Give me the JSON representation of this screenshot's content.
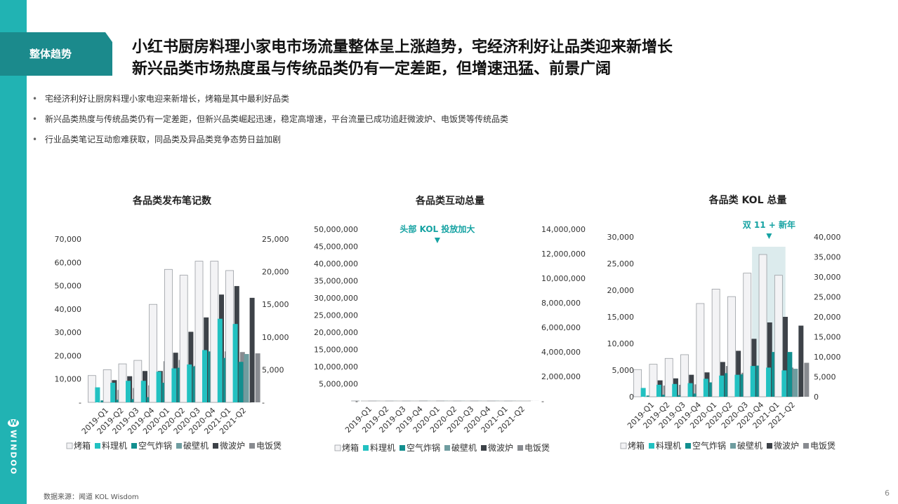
{
  "section_tag": "整体趋势",
  "headline": [
    "小红书厨房料理小家电市场流量整体呈上涨趋势，宅经济利好让品类迎来新增长",
    "新兴品类市场热度虽与传统品类仍有一定差距，但增速迅猛、前景广阔"
  ],
  "bullets": [
    "宅经济利好让厨房料理小家电迎来新增长，烤箱是其中最利好品类",
    "新兴品类热度与传统品类仍有一定差距，但新兴品类崛起迅速，稳定高增速，平台流量已成功追赶微波炉、电饭煲等传统品类",
    "行业品类笔记互动愈难获取，同品类及异品类竞争态势日益加剧"
  ],
  "brand": "WINDOO",
  "source": "数据来源：闻道 KOL Wisdom",
  "page_number": "6",
  "colors": {
    "primary": "#21b3b3",
    "dark": "#1b8a8c",
    "annotation": "#16a3a3"
  },
  "legend_colors": [
    "#f3f3f5",
    "#22c1c1",
    "#128f8f",
    "#6f9da0",
    "#3d4248",
    "#888b90"
  ],
  "chart_data": [
    {
      "type": "bar",
      "title": "各品类发布笔记数",
      "categories": [
        "2019-Q1",
        "2019-Q2",
        "2019-Q3",
        "2019-Q4",
        "2020-Q1",
        "2020-Q2",
        "2020-Q3",
        "2020-Q4",
        "2021-Q1",
        "2021-Q2"
      ],
      "ylim": [
        0,
        70000
      ],
      "y_ticks": [
        "-",
        "10,000",
        "20,000",
        "30,000",
        "40,000",
        "50,000",
        "60,000",
        "70,000"
      ],
      "y2lim": [
        0,
        25000
      ],
      "y2_ticks": [
        "-",
        "5,000",
        "10,000",
        "15,000",
        "20,000",
        "25,000"
      ],
      "series": [
        {
          "name": "烤箱",
          "axis": "left",
          "values": [
            11500,
            14000,
            16500,
            18000,
            42000,
            57000,
            54500,
            60500,
            60500,
            56500
          ]
        },
        {
          "name": "料理机",
          "axis": "right",
          "values": [
            2300,
            3000,
            3300,
            3300,
            4700,
            5200,
            5800,
            8000,
            12800,
            12000
          ]
        },
        {
          "name": "空气炸锅",
          "axis": "right",
          "values": [
            300,
            400,
            500,
            800,
            3000,
            5300,
            5500,
            7800,
            6800,
            6200
          ]
        },
        {
          "name": "破壁机",
          "axis": "right",
          "values": [
            900,
            1200,
            1700,
            2000,
            3400,
            5200,
            5700,
            7900,
            7100,
            7400
          ]
        },
        {
          "name": "微波炉",
          "axis": "right",
          "values": [
            3400,
            4000,
            4800,
            4800,
            7600,
            10800,
            13000,
            16500,
            17800,
            16000
          ]
        },
        {
          "name": "电饭煲",
          "axis": "right",
          "values": [
            1900,
            2200,
            2600,
            6300,
            6500,
            5600,
            6000,
            7800,
            7700,
            7500
          ]
        }
      ]
    },
    {
      "type": "bar",
      "title": "各品类互动总量",
      "annotation": "头部 KOL 投放加大",
      "categories": [
        "2019-Q1",
        "2019-Q2",
        "2019-Q3",
        "2019-Q4",
        "2020-Q1",
        "2020-Q2",
        "2020-Q3",
        "2020-Q4",
        "2021-Q1",
        "2021-Q2"
      ],
      "ylim": [
        0,
        50000000
      ],
      "y_ticks": [
        "-",
        "5,000,000",
        "10,000,000",
        "15,000,000",
        "20,000,000",
        "25,000,000",
        "30,000,000",
        "35,000,000",
        "40,000,000",
        "45,000,000",
        "50,000,000"
      ],
      "y2lim": [
        0,
        14000000
      ],
      "y2_ticks": [
        "-",
        "2,000,000",
        "4,000,000",
        "6,000,000",
        "8,000,000",
        "10,000,000",
        "12,000,000",
        "14,000,000"
      ],
      "series": [
        {
          "name": "烤箱",
          "axis": "left",
          "values": [
            15200,
            16400,
            16400,
            19500,
            43200,
            34100,
            25400,
            27400,
            25500,
            18700
          ]
        },
        {
          "name": "料理机",
          "axis": "right",
          "values": [
            1650,
            2050,
            1900,
            1300,
            3000,
            3050,
            3250,
            3000,
            2900,
            2300
          ]
        },
        {
          "name": "空气炸锅",
          "axis": "right",
          "values": [
            150,
            200,
            150,
            1450,
            2000,
            1700,
            1650,
            1600,
            1900,
            2200
          ]
        },
        {
          "name": "破壁机",
          "axis": "right",
          "values": [
            1700,
            2150,
            1850,
            1800,
            3150,
            3600,
            3700,
            2850,
            3250,
            3300
          ]
        },
        {
          "name": "微波炉",
          "axis": "right",
          "values": [
            2100,
            2200,
            2150,
            2900,
            4550,
            4350,
            4150,
            4900,
            4250,
            3900
          ]
        },
        {
          "name": "电饭煲",
          "axis": "right",
          "values": [
            1950,
            2350,
            4050,
            3050,
            7200,
            2300,
            3300,
            3000,
            2300,
            3200
          ]
        }
      ]
    },
    {
      "type": "bar",
      "title": "各品类 KOL 总量",
      "annotation": "双 11 + 新年",
      "categories": [
        "2019-Q1",
        "2019-Q2",
        "2019-Q3",
        "2019-Q4",
        "2020-Q1",
        "2020-Q2",
        "2020-Q3",
        "2020-Q4",
        "2021-Q1",
        "2021-Q2"
      ],
      "ylim": [
        0,
        30000
      ],
      "y_ticks": [
        "0",
        "5,000",
        "10,000",
        "15,000",
        "20,000",
        "25,000",
        "30,000"
      ],
      "y2lim": [
        0,
        40000
      ],
      "y2_ticks": [
        "0",
        "5,000",
        "10,000",
        "15,000",
        "20,000",
        "25,000",
        "30,000",
        "35,000",
        "40,000"
      ],
      "highlight_categories": [
        "2020-Q4",
        "2021-Q1"
      ],
      "series": [
        {
          "name": "烤箱",
          "axis": "left",
          "values": [
            5100,
            6100,
            7200,
            7900,
            17500,
            20200,
            18800,
            23200,
            26700,
            22800
          ]
        },
        {
          "name": "料理机",
          "axis": "right",
          "values": [
            2200,
            3000,
            3200,
            3400,
            4500,
            5300,
            5500,
            7700,
            7300,
            6600
          ]
        },
        {
          "name": "空气炸锅",
          "axis": "right",
          "values": [
            300,
            500,
            400,
            800,
            3600,
            5900,
            5600,
            7800,
            11200,
            11200
          ]
        },
        {
          "name": "破壁机",
          "axis": "right",
          "values": [
            1100,
            1300,
            1300,
            1900,
            3900,
            5200,
            5500,
            7700,
            6500,
            7000
          ]
        },
        {
          "name": "微波炉",
          "axis": "right",
          "values": [
            4100,
            4600,
            5500,
            6100,
            8700,
            11500,
            14500,
            18600,
            20000,
            17800
          ]
        },
        {
          "name": "电饭煲",
          "axis": "right",
          "values": [
            2800,
            3000,
            3100,
            3200,
            7700,
            6000,
            6300,
            7500,
            7300,
            8500
          ]
        }
      ]
    }
  ]
}
